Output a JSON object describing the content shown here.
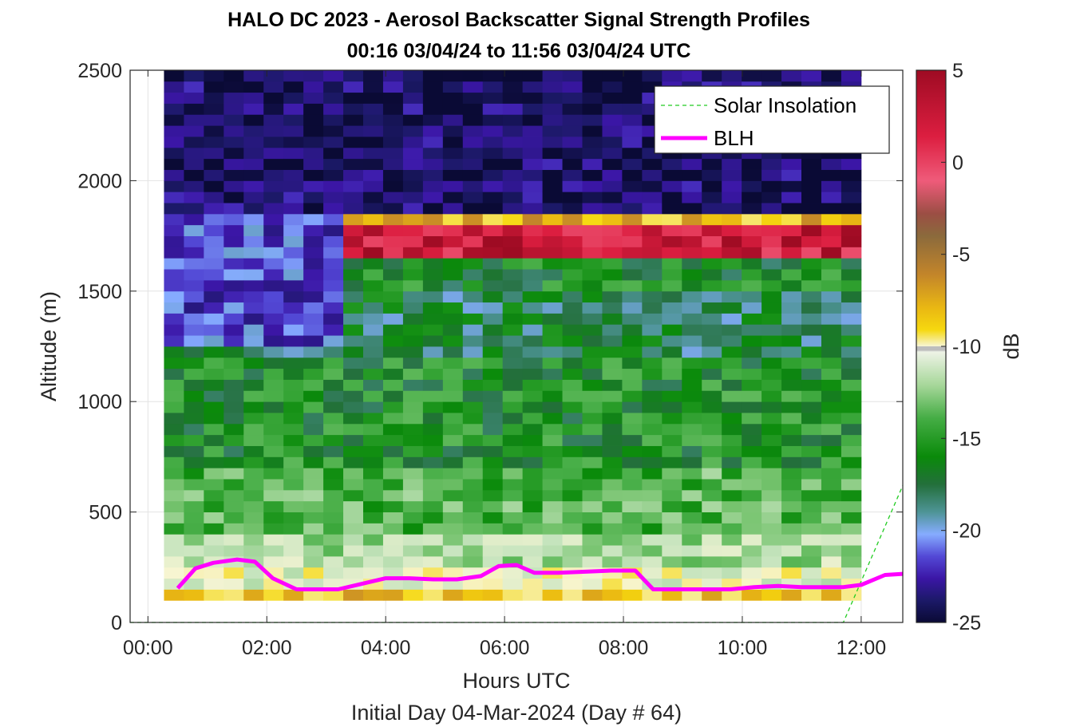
{
  "chart_data": {
    "type": "heatmap",
    "title": "HALO DC 2023 - Aerosol Backscatter Signal Strength Profiles",
    "subtitle": "00:16 03/04/24 to 11:56 03/04/24  UTC",
    "xlabel": "Hours UTC",
    "xlabel2": "Initial Day 04-Mar-2024 (Day # 64)",
    "ylabel": "Altitude (m)",
    "colorbar_label": "dB",
    "xlim": [
      -0.3,
      12.7
    ],
    "ylim": [
      0,
      2500
    ],
    "clim": [
      -25,
      5
    ],
    "x_ticks": [
      0,
      2,
      4,
      6,
      8,
      10,
      12
    ],
    "x_tick_labels": [
      "00:00",
      "02:00",
      "04:00",
      "06:00",
      "08:00",
      "10:00",
      "12:00"
    ],
    "y_ticks": [
      0,
      500,
      1000,
      1500,
      2000,
      2500
    ],
    "y_tick_labels": [
      "0",
      "500",
      "1000",
      "1500",
      "2000",
      "2500"
    ],
    "colorbar_ticks": [
      5,
      0,
      -5,
      -10,
      -15,
      -20,
      -25
    ],
    "colorbar_tick_labels": [
      "5",
      "0",
      "-5",
      "-10",
      "-15",
      "-20",
      "-25"
    ],
    "grid": true,
    "legend_position": "top-right",
    "heatmap": {
      "x_start": 0.27,
      "x_end": 12.0,
      "y_start": 100,
      "y_end": 2500,
      "bin_height_m": 50,
      "layer_profile": [
        {
          "y_low": 100,
          "y_high": 150,
          "db": -7.5
        },
        {
          "y_low": 150,
          "y_high": 250,
          "db": -10.5
        },
        {
          "y_low": 250,
          "y_high": 400,
          "db": -12.5
        },
        {
          "y_low": 400,
          "y_high": 700,
          "db": -14.5
        },
        {
          "y_low": 700,
          "y_high": 1200,
          "db": -16.2
        },
        {
          "y_low": 1200,
          "y_high": 1500,
          "db": -17.8
        },
        {
          "y_low": 1500,
          "y_high": 1650,
          "db": -16.5
        },
        {
          "y_low": 1650,
          "y_high": 1800,
          "db": 3.5
        },
        {
          "y_low": 1800,
          "y_high": 1850,
          "db": -7
        },
        {
          "y_low": 1850,
          "y_high": 2500,
          "db": -24
        }
      ],
      "early_profile_until_hour": 3.4,
      "early_layer_profile": [
        {
          "y_low": 1250,
          "y_high": 1850,
          "db": -21.5
        },
        {
          "y_low": 1850,
          "y_high": 2500,
          "db": -24
        }
      ]
    },
    "series": [
      {
        "name": "Solar Insolation",
        "style": "dashed",
        "color": "#22cc22",
        "x": [
          -0.3,
          11.7,
          12.7
        ],
        "y": [
          0,
          0,
          620
        ]
      },
      {
        "name": "BLH",
        "style": "solid",
        "color": "#ff00ff",
        "x": [
          0.5,
          0.8,
          1.1,
          1.5,
          1.8,
          2.1,
          2.5,
          2.8,
          3.2,
          3.6,
          4.0,
          4.4,
          4.8,
          5.2,
          5.6,
          5.9,
          6.2,
          6.5,
          6.9,
          7.4,
          7.8,
          8.2,
          8.5,
          8.9,
          9.3,
          9.8,
          10.2,
          10.6,
          11.0,
          11.3,
          11.7,
          12.0,
          12.4,
          12.7
        ],
        "y": [
          155,
          245,
          270,
          285,
          275,
          200,
          150,
          150,
          150,
          175,
          200,
          200,
          195,
          195,
          210,
          255,
          260,
          225,
          225,
          230,
          235,
          235,
          150,
          150,
          150,
          150,
          160,
          165,
          160,
          160,
          160,
          170,
          215,
          220
        ]
      }
    ]
  },
  "legend": {
    "items": [
      {
        "label": "Solar Insolation",
        "style": "dashed",
        "color": "#22cc22"
      },
      {
        "label": "BLH",
        "style": "solid",
        "color": "#ff00ff"
      }
    ]
  }
}
